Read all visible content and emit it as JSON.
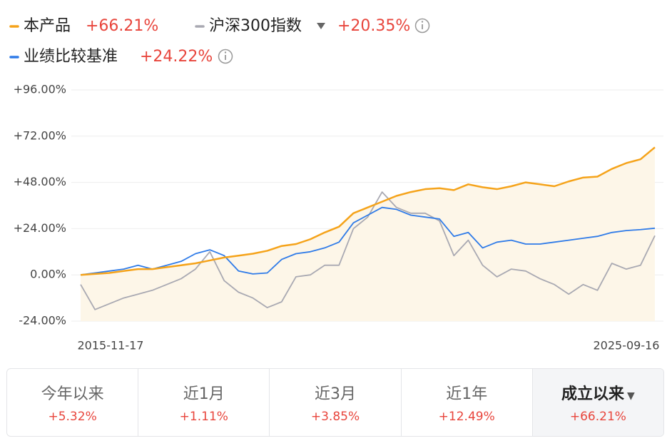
{
  "chart_data": {
    "type": "line",
    "categories": [
      "2015-11-17",
      null,
      null,
      null,
      null,
      null,
      null,
      null,
      null,
      null,
      null,
      null,
      null,
      null,
      null,
      null,
      null,
      null,
      null,
      null,
      null,
      null,
      null,
      null,
      null,
      null,
      null,
      null,
      null,
      null,
      null,
      null,
      null,
      null,
      null,
      null,
      null,
      null,
      null,
      null,
      "2025-09-16"
    ],
    "series": [
      {
        "name": "本产品",
        "total": "+66.21%",
        "color": "#f5a31a",
        "values": [
          0,
          0.5,
          1,
          2,
          3,
          3,
          4,
          5,
          6,
          7.5,
          9,
          10,
          11,
          12.5,
          15,
          16,
          18.5,
          22,
          25,
          32,
          35,
          38,
          41,
          43,
          44.5,
          45,
          44,
          47,
          45.5,
          44.5,
          46,
          48,
          47,
          46,
          48.5,
          50.5,
          51,
          55,
          58,
          60,
          66.21
        ]
      },
      {
        "name": "沪深300指数",
        "total": "+20.35%",
        "color": "#a9a9b2",
        "values": [
          -5,
          -18,
          -15,
          -12,
          -10,
          -8,
          -5,
          -2,
          3,
          12,
          -3,
          -9,
          -12,
          -17,
          -14,
          -1,
          0,
          5,
          5,
          24,
          30,
          43,
          35,
          32,
          32,
          28,
          10,
          18,
          5,
          -1,
          3,
          2,
          -2,
          -5,
          -10,
          -5,
          -8,
          6,
          3,
          5,
          20.35
        ]
      },
      {
        "name": "业绩比较基准",
        "total": "+24.22%",
        "color": "#2f7be8",
        "values": [
          0,
          1,
          2,
          3,
          5,
          3,
          5,
          7,
          11,
          13,
          10,
          2,
          0.5,
          1,
          8,
          11,
          12,
          14,
          17,
          27,
          31,
          35,
          34,
          31,
          30,
          29,
          20,
          22,
          14,
          17,
          18,
          16,
          16,
          17,
          18,
          19,
          20,
          22,
          23,
          23.5,
          24.22
        ]
      }
    ],
    "ylim": [
      -24,
      96
    ],
    "yticks": [
      {
        "value": 96,
        "label": "+96.00%"
      },
      {
        "value": 72,
        "label": "+72.00%"
      },
      {
        "value": 48,
        "label": "+48.00%"
      },
      {
        "value": 24,
        "label": "+24.00%"
      },
      {
        "value": 0,
        "label": "0.00%"
      },
      {
        "value": -24,
        "label": "-24.00%"
      }
    ],
    "grid": true
  },
  "tabs": [
    {
      "label": "今年以来",
      "value": "+5.32%"
    },
    {
      "label": "近1月",
      "value": "+1.11%"
    },
    {
      "label": "近3月",
      "value": "+3.85%"
    },
    {
      "label": "近1年",
      "value": "+12.49%"
    },
    {
      "label": "成立以来",
      "value": "+66.21%"
    }
  ]
}
